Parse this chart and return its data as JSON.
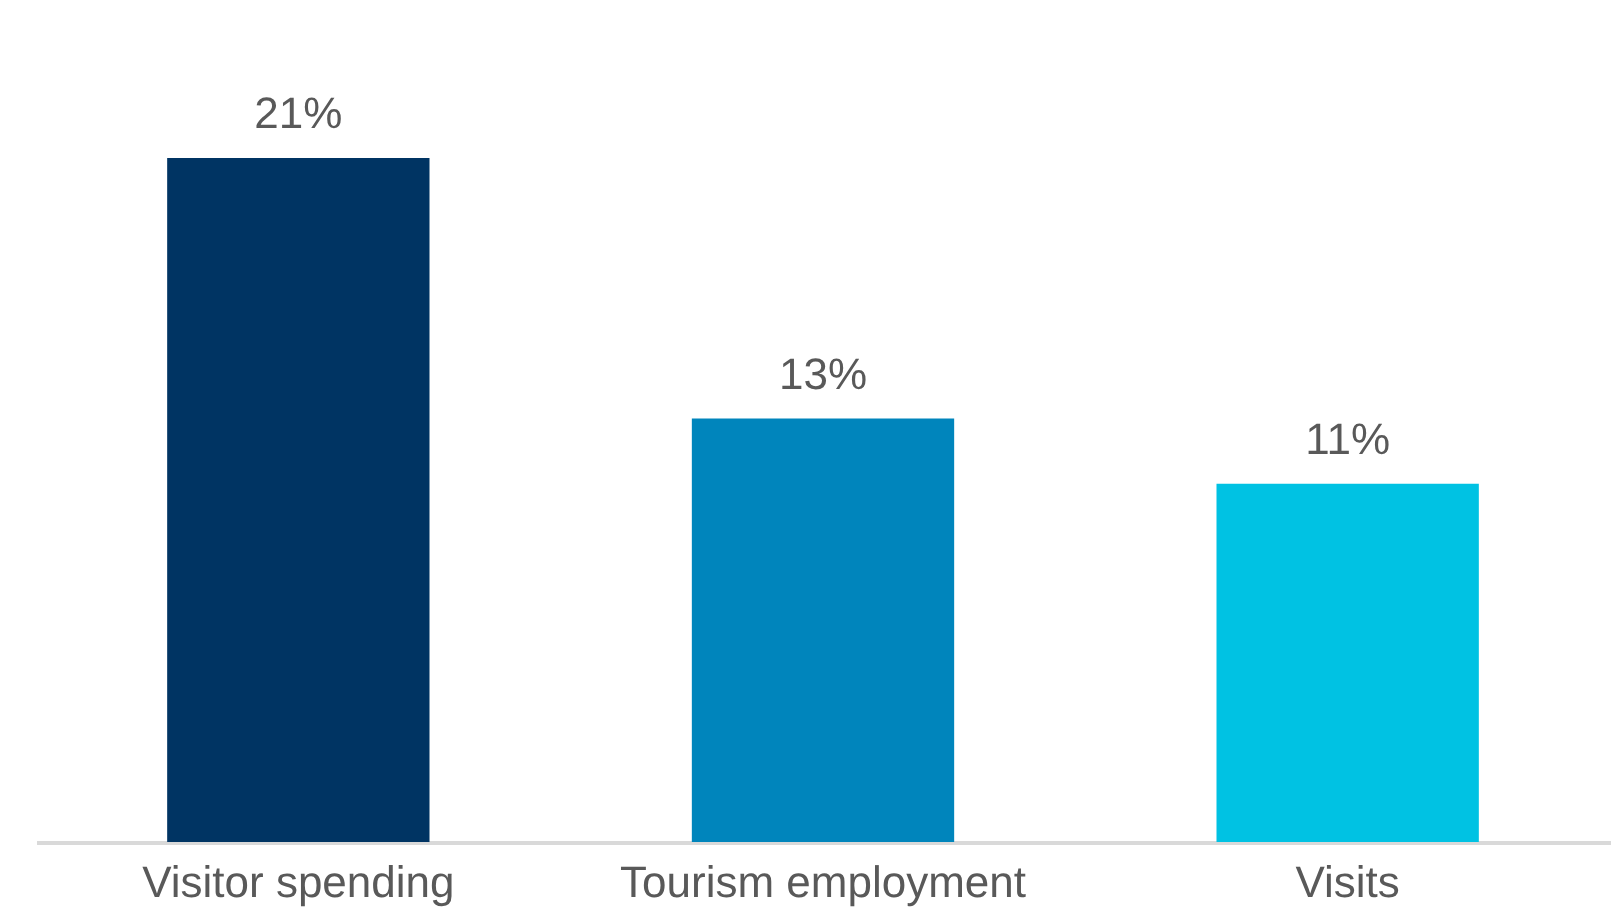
{
  "chart_data": {
    "type": "bar",
    "categories": [
      "Visitor spending",
      "Tourism employment",
      "Visits"
    ],
    "values": [
      21,
      13,
      11
    ],
    "colors": [
      "#003463",
      "#0085bc",
      "#00c2e3"
    ],
    "value_labels": [
      "21%",
      "13%",
      "11%"
    ]
  }
}
